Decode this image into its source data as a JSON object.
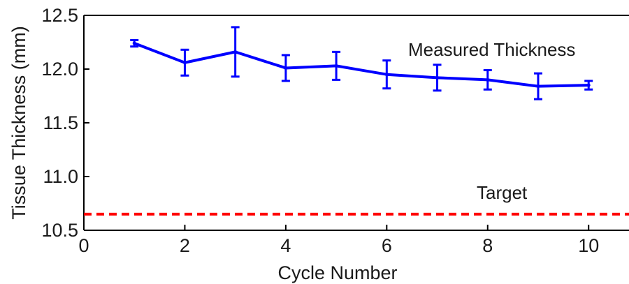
{
  "chart_data": {
    "type": "line",
    "title": "",
    "xlabel": "Cycle Number",
    "ylabel": "Tissue Thickness (mm)",
    "xlim": [
      0,
      10.8
    ],
    "ylim": [
      10.5,
      12.5
    ],
    "x_ticks": [
      0,
      2,
      4,
      6,
      8,
      10
    ],
    "y_ticks": [
      10.5,
      11.0,
      11.5,
      12.0,
      12.5
    ],
    "x_tick_labels": [
      "0",
      "2",
      "4",
      "6",
      "8",
      "10"
    ],
    "y_tick_labels": [
      "10.5",
      "11.0",
      "11.5",
      "12.0",
      "12.5"
    ],
    "grid": false,
    "series": [
      {
        "name": "Measured Thickness",
        "color": "#0000ff",
        "style": "solid",
        "x": [
          1,
          2,
          3,
          4,
          5,
          6,
          7,
          8,
          9,
          10
        ],
        "y": [
          12.24,
          12.06,
          12.16,
          12.01,
          12.03,
          11.95,
          11.92,
          11.9,
          11.84,
          11.85
        ],
        "error": [
          0.03,
          0.12,
          0.23,
          0.12,
          0.13,
          0.13,
          0.12,
          0.09,
          0.12,
          0.04
        ]
      },
      {
        "name": "Target",
        "color": "#ff0000",
        "style": "dashed",
        "y_constant": 10.65
      }
    ],
    "annotations": [
      {
        "text": "Measured Thickness"
      },
      {
        "text": "Target"
      }
    ]
  }
}
